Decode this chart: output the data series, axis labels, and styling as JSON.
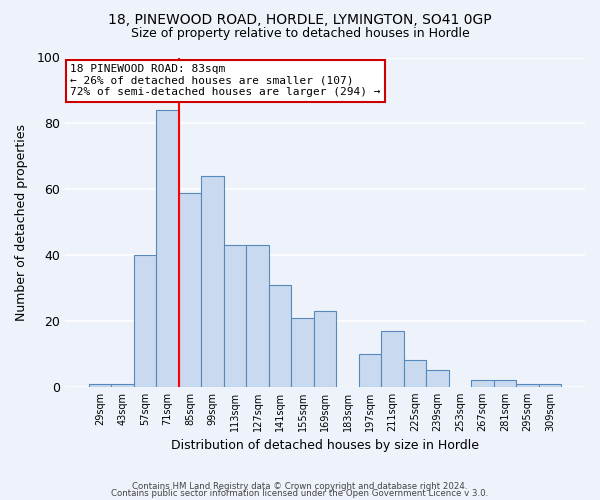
{
  "title1": "18, PINEWOOD ROAD, HORDLE, LYMINGTON, SO41 0GP",
  "title2": "Size of property relative to detached houses in Hordle",
  "xlabel": "Distribution of detached houses by size in Hordle",
  "ylabel": "Number of detached properties",
  "footer1": "Contains HM Land Registry data © Crown copyright and database right 2024.",
  "footer2": "Contains public sector information licensed under the Open Government Licence v 3.0.",
  "bin_labels": [
    "29sqm",
    "43sqm",
    "57sqm",
    "71sqm",
    "85sqm",
    "99sqm",
    "113sqm",
    "127sqm",
    "141sqm",
    "155sqm",
    "169sqm",
    "183sqm",
    "197sqm",
    "211sqm",
    "225sqm",
    "239sqm",
    "253sqm",
    "267sqm",
    "281sqm",
    "295sqm",
    "309sqm"
  ],
  "bar_values": [
    1,
    1,
    40,
    84,
    59,
    64,
    43,
    43,
    31,
    21,
    23,
    0,
    10,
    17,
    8,
    5,
    0,
    2,
    2,
    1,
    1
  ],
  "bar_color": "#c9daf0",
  "bar_edge_color": "#5588bb",
  "red_line_x": 3.5,
  "annotation_title": "18 PINEWOOD ROAD: 83sqm",
  "annotation_line2": "← 26% of detached houses are smaller (107)",
  "annotation_line3": "72% of semi-detached houses are larger (294) →",
  "annotation_box_color": "#ffffff",
  "annotation_box_edge": "#cc0000",
  "ylim": [
    0,
    100
  ],
  "yticks": [
    0,
    20,
    40,
    60,
    80,
    100
  ],
  "background_color": "#eef2fa"
}
